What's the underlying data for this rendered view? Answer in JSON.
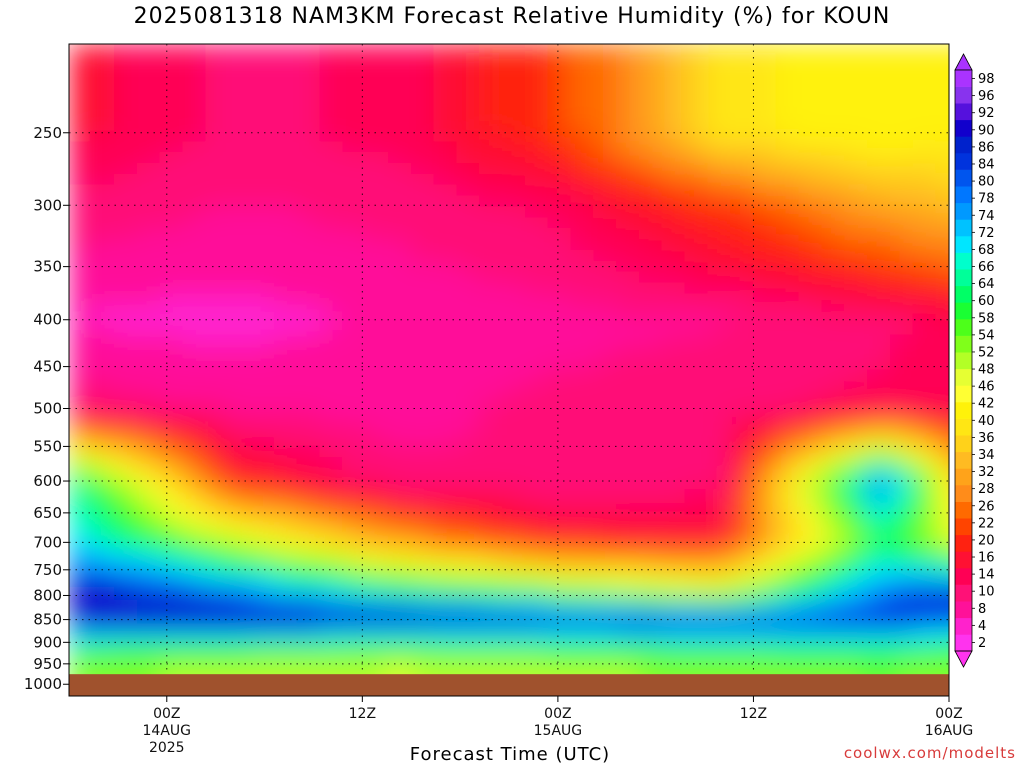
{
  "title": "2025081318 NAM3KM Forecast Relative Humidity (%) for KOUN",
  "xlabel": "Forecast Time (UTC)",
  "credit": "coolwx.com/modelts",
  "chart_data": {
    "type": "heatmap",
    "title": "2025081318 NAM3KM Forecast Relative Humidity (%) for KOUN",
    "xlabel": "Forecast Time (UTC)",
    "ylabel": "",
    "y_axis": "pressure (hPa), inverted, log-pressure",
    "ylim": [
      1000,
      200
    ],
    "yticks": [
      250,
      300,
      350,
      400,
      450,
      500,
      550,
      600,
      650,
      700,
      750,
      800,
      850,
      900,
      950,
      1000
    ],
    "xlim_hours_from_init": [
      0,
      54
    ],
    "x_ticks": [
      {
        "hour": 6,
        "label": "00Z",
        "sub": "14AUG",
        "sub2": "2025"
      },
      {
        "hour": 18,
        "label": "12Z",
        "sub": "",
        "sub2": ""
      },
      {
        "hour": 30,
        "label": "00Z",
        "sub": "15AUG",
        "sub2": ""
      },
      {
        "hour": 42,
        "label": "12Z",
        "sub": "",
        "sub2": ""
      },
      {
        "hour": 54,
        "label": "00Z",
        "sub": "16AUG",
        "sub2": ""
      }
    ],
    "grid": true,
    "colorbar": {
      "labels": [
        2,
        4,
        8,
        10,
        14,
        16,
        20,
        22,
        26,
        28,
        32,
        34,
        36,
        40,
        42,
        46,
        48,
        52,
        54,
        58,
        60,
        64,
        66,
        68,
        72,
        74,
        78,
        80,
        84,
        86,
        90,
        92,
        96,
        98
      ],
      "colors": [
        "#ff33ee",
        "#ff22cc",
        "#ff1199",
        "#ff1177",
        "#ff0055",
        "#ff1133",
        "#ff2211",
        "#ff4400",
        "#ff6a00",
        "#ff8c1a",
        "#ffa31a",
        "#ffbb22",
        "#ffd21a",
        "#ffe614",
        "#fff20a",
        "#ffff33",
        "#e6ff33",
        "#b3ff26",
        "#80ff1a",
        "#4dff1a",
        "#1aff33",
        "#00ff66",
        "#00ff99",
        "#00ffcc",
        "#00e6ff",
        "#00c2ff",
        "#0099ff",
        "#0077ff",
        "#0055ee",
        "#0033dd",
        "#0022cc",
        "#1100cc",
        "#5511dd",
        "#8833ee",
        "#aa33ff"
      ]
    },
    "rh_profiles": [
      {
        "pressure": 250,
        "hours": [
          0,
          10,
          20,
          30,
          40,
          50,
          56
        ],
        "rh": [
          15,
          10,
          12,
          20,
          38,
          42,
          40
        ]
      },
      {
        "pressure": 300,
        "hours": [
          0,
          10,
          20,
          30,
          40,
          50,
          56
        ],
        "rh": [
          10,
          8,
          9,
          12,
          20,
          30,
          34
        ]
      },
      {
        "pressure": 400,
        "hours": [
          0,
          10,
          20,
          30,
          40,
          50,
          56
        ],
        "rh": [
          5,
          4,
          6,
          7,
          8,
          10,
          14
        ]
      },
      {
        "pressure": 500,
        "hours": [
          0,
          10,
          20,
          30,
          40,
          50,
          56
        ],
        "rh": [
          10,
          8,
          7,
          9,
          10,
          12,
          14
        ]
      },
      {
        "pressure": 600,
        "hours": [
          0,
          10,
          20,
          30,
          40,
          50,
          56
        ],
        "rh": [
          66,
          18,
          9,
          8,
          10,
          80,
          24
        ]
      },
      {
        "pressure": 700,
        "hours": [
          0,
          10,
          20,
          30,
          40,
          50,
          56
        ],
        "rh": [
          70,
          50,
          30,
          18,
          16,
          60,
          40
        ]
      },
      {
        "pressure": 800,
        "hours": [
          0,
          10,
          20,
          30,
          40,
          50,
          56
        ],
        "rh": [
          92,
          80,
          66,
          58,
          50,
          80,
          90
        ]
      },
      {
        "pressure": 850,
        "hours": [
          0,
          10,
          20,
          30,
          40,
          50,
          56
        ],
        "rh": [
          90,
          92,
          92,
          88,
          86,
          86,
          80
        ]
      },
      {
        "pressure": 900,
        "hours": [
          0,
          10,
          20,
          30,
          40,
          50,
          56
        ],
        "rh": [
          66,
          64,
          62,
          64,
          66,
          68,
          62
        ]
      },
      {
        "pressure": 950,
        "hours": [
          0,
          10,
          20,
          30,
          40,
          50,
          56
        ],
        "rh": [
          52,
          50,
          48,
          50,
          52,
          54,
          52
        ]
      }
    ],
    "below_ground_color": "#a0522d"
  }
}
